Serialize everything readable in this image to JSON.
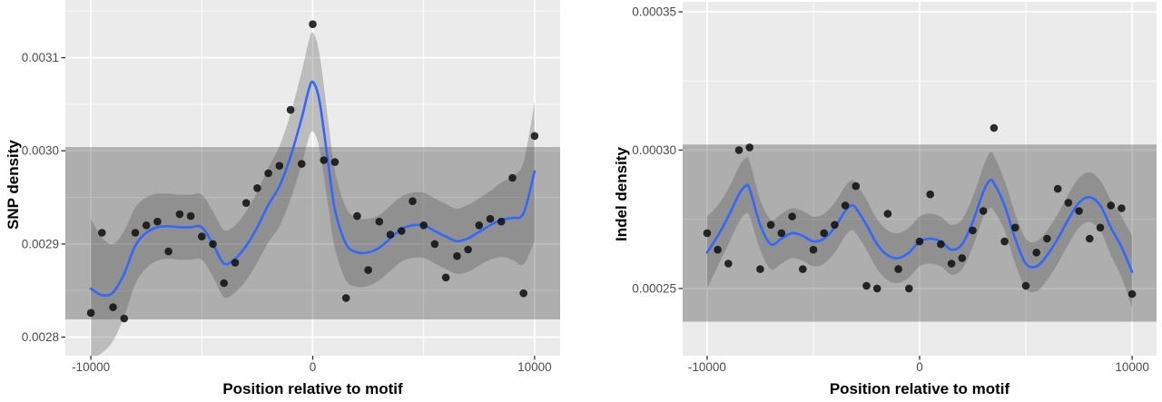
{
  "colors": {
    "panel_bg": "#EBEBEB",
    "grid": "#FFFFFF",
    "band": "rgba(0,0,0,0.26)",
    "ribbon": "rgba(70,70,70,0.28)",
    "line": "#3366FF",
    "point": "#111111",
    "tick": "#333333",
    "tick_label": "#4D4D4D",
    "title": "#000000"
  },
  "chart_data": [
    {
      "type": "scatter",
      "title": "",
      "xlabel": "Position relative to motif",
      "ylabel": "SNP density",
      "xlim": [
        -11150,
        11150
      ],
      "ylim": [
        0.00278,
        0.003162
      ],
      "grid": true,
      "xticks": {
        "values": [
          -10000,
          0,
          10000
        ],
        "labels": [
          "-10000",
          "0",
          "10000"
        ],
        "minor": [
          -5000,
          5000
        ]
      },
      "yticks": {
        "values": [
          0.0028,
          0.0029,
          0.003,
          0.0031
        ],
        "labels": [
          "0.0028",
          "0.0029",
          "0.0030",
          "0.0031"
        ],
        "minor": [
          0.00285,
          0.00295,
          0.00305,
          0.00315
        ]
      },
      "band": {
        "ymin": 0.002819,
        "ymax": 0.003004
      },
      "points": {
        "x": [
          -10000,
          -9500,
          -9000,
          -8500,
          -8000,
          -7500,
          -7000,
          -6500,
          -6000,
          -5500,
          -5000,
          -4500,
          -4000,
          -3500,
          -3000,
          -2500,
          -2000,
          -1500,
          -1000,
          -500,
          0,
          500,
          1000,
          1500,
          2000,
          2500,
          3000,
          3500,
          4000,
          4500,
          5000,
          5500,
          6000,
          6500,
          7000,
          7500,
          8000,
          8500,
          9000,
          9500,
          10000
        ],
        "y": [
          0.002826,
          0.002912,
          0.002832,
          0.00282,
          0.002912,
          0.00292,
          0.002924,
          0.002892,
          0.002932,
          0.00293,
          0.002908,
          0.0029,
          0.002858,
          0.00288,
          0.002944,
          0.00296,
          0.002976,
          0.002984,
          0.003044,
          0.002986,
          0.003136,
          0.00299,
          0.002988,
          0.002842,
          0.00293,
          0.002872,
          0.002924,
          0.00291,
          0.002914,
          0.002946,
          0.00292,
          0.0029,
          0.002864,
          0.002887,
          0.002894,
          0.00292,
          0.002927,
          0.002924,
          0.002971,
          0.002847,
          0.003016
        ]
      },
      "smooth": {
        "x": [
          -10000,
          -9500,
          -9000,
          -8500,
          -8000,
          -7500,
          -7000,
          -6500,
          -6000,
          -5500,
          -5000,
          -4500,
          -4000,
          -3500,
          -3000,
          -2500,
          -2000,
          -1500,
          -1000,
          -500,
          -200,
          0,
          300,
          700,
          1000,
          1500,
          2000,
          2500,
          3000,
          3500,
          4000,
          4500,
          5000,
          5500,
          6000,
          6500,
          7000,
          7500,
          8000,
          8500,
          9000,
          9500,
          10000
        ],
        "y": [
          0.002852,
          0.002845,
          0.002848,
          0.002868,
          0.002898,
          0.002912,
          0.002918,
          0.002919,
          0.002918,
          0.002918,
          0.002918,
          0.0029,
          0.002879,
          0.002884,
          0.002898,
          0.002918,
          0.002942,
          0.002962,
          0.002994,
          0.003035,
          0.003064,
          0.003074,
          0.003054,
          0.002986,
          0.002937,
          0.0029,
          0.002891,
          0.002891,
          0.002896,
          0.002906,
          0.002916,
          0.00292,
          0.00292,
          0.002914,
          0.002908,
          0.002903,
          0.002906,
          0.002913,
          0.00292,
          0.002926,
          0.002928,
          0.002933,
          0.002978
        ],
        "halfwidth": [
          7.5e-05,
          6.2e-05,
          5.2e-05,
          4.6e-05,
          4.1e-05,
          3.8e-05,
          3.6e-05,
          3.5e-05,
          3.5e-05,
          3.5e-05,
          3.5e-05,
          3.5e-05,
          3.6e-05,
          3.6e-05,
          3.7e-05,
          3.8e-05,
          4e-05,
          4.3e-05,
          4.6e-05,
          5e-05,
          5.2e-05,
          5.3e-05,
          5.1e-05,
          4.6e-05,
          4.2e-05,
          3.9e-05,
          3.7e-05,
          3.6e-05,
          3.5e-05,
          3.5e-05,
          3.5e-05,
          3.5e-05,
          3.5e-05,
          3.5e-05,
          3.5e-05,
          3.5e-05,
          3.6e-05,
          3.6e-05,
          3.7e-05,
          4e-05,
          4.5e-05,
          5.5e-05,
          7.5e-05
        ]
      }
    },
    {
      "type": "scatter",
      "title": "",
      "xlabel": "Position relative to motif",
      "ylabel": "Indel density",
      "xlim": [
        -11150,
        11150
      ],
      "ylim": [
        0.0002257,
        0.0003536
      ],
      "grid": true,
      "xticks": {
        "values": [
          -10000,
          0,
          10000
        ],
        "labels": [
          "-10000",
          "0",
          "10000"
        ],
        "minor": [
          -5000,
          5000
        ]
      },
      "yticks": {
        "values": [
          0.00025,
          0.0003,
          0.00035
        ],
        "labels": [
          "0.00025",
          "0.00030",
          "0.00035"
        ],
        "minor": [
          0.000275,
          0.000325
        ]
      },
      "band": {
        "ymin": 0.000238,
        "ymax": 0.000302
      },
      "points": {
        "x": [
          -10000,
          -9500,
          -9000,
          -8500,
          -8000,
          -7500,
          -7000,
          -6500,
          -6000,
          -5500,
          -5000,
          -4500,
          -4000,
          -3500,
          -3000,
          -2500,
          -2000,
          -1500,
          -1000,
          -500,
          0,
          500,
          1000,
          1500,
          2000,
          2500,
          3000,
          3500,
          4000,
          4500,
          5000,
          5500,
          6000,
          6500,
          7000,
          7500,
          8000,
          8500,
          9000,
          9500,
          10000
        ],
        "y": [
          0.00027,
          0.000264,
          0.000259,
          0.0003,
          0.000301,
          0.000257,
          0.000273,
          0.00027,
          0.000276,
          0.000257,
          0.000264,
          0.00027,
          0.000273,
          0.00028,
          0.000287,
          0.000251,
          0.00025,
          0.000277,
          0.000257,
          0.00025,
          0.000267,
          0.000284,
          0.000266,
          0.000259,
          0.000261,
          0.000271,
          0.000278,
          0.000308,
          0.000267,
          0.000272,
          0.000251,
          0.000263,
          0.000268,
          0.000286,
          0.000281,
          0.000278,
          0.000268,
          0.000272,
          0.00028,
          0.000279,
          0.000248
        ]
      },
      "smooth": {
        "x": [
          -10000,
          -9500,
          -9000,
          -8500,
          -8200,
          -8000,
          -7500,
          -7000,
          -6500,
          -6000,
          -5500,
          -5000,
          -4500,
          -4000,
          -3500,
          -3200,
          -3000,
          -2500,
          -2000,
          -1500,
          -1000,
          -500,
          0,
          500,
          1000,
          1500,
          2000,
          2500,
          3000,
          3300,
          3500,
          4000,
          4500,
          5000,
          5500,
          6000,
          6500,
          7000,
          7500,
          8000,
          8500,
          9000,
          9500,
          10000
        ],
        "y": [
          0.000263,
          0.000269,
          0.000276,
          0.000284,
          0.000287,
          0.000286,
          0.000273,
          0.000266,
          0.000268,
          0.00027,
          0.000269,
          0.000267,
          0.000268,
          0.000272,
          0.000278,
          0.00028,
          0.000279,
          0.000273,
          0.000266,
          0.000262,
          0.000261,
          0.000263,
          0.000267,
          0.000268,
          0.000267,
          0.000264,
          0.000266,
          0.000274,
          0.000285,
          0.000289,
          0.000288,
          0.00028,
          0.000268,
          0.000259,
          0.000258,
          0.000262,
          0.000268,
          0.000275,
          0.000281,
          0.000283,
          0.00028,
          0.000272,
          0.000265,
          0.000256
        ],
        "halfwidth": [
          1.3e-05,
          1.1e-05,
          1e-05,
          1e-05,
          1e-05,
          1e-05,
          9e-06,
          9e-06,
          9e-06,
          9e-06,
          9e-06,
          9e-06,
          9e-06,
          9e-06,
          9e-06,
          9e-06,
          9e-06,
          9e-06,
          9e-06,
          9e-06,
          9e-06,
          9e-06,
          9e-06,
          9e-06,
          9e-06,
          9e-06,
          9e-06,
          9e-06,
          9e-06,
          1e-05,
          1e-05,
          9e-06,
          9e-06,
          9e-06,
          9e-06,
          9e-06,
          9e-06,
          9e-06,
          9e-06,
          9e-06,
          9e-06,
          1e-05,
          1.1e-05,
          1.3e-05
        ]
      }
    }
  ]
}
